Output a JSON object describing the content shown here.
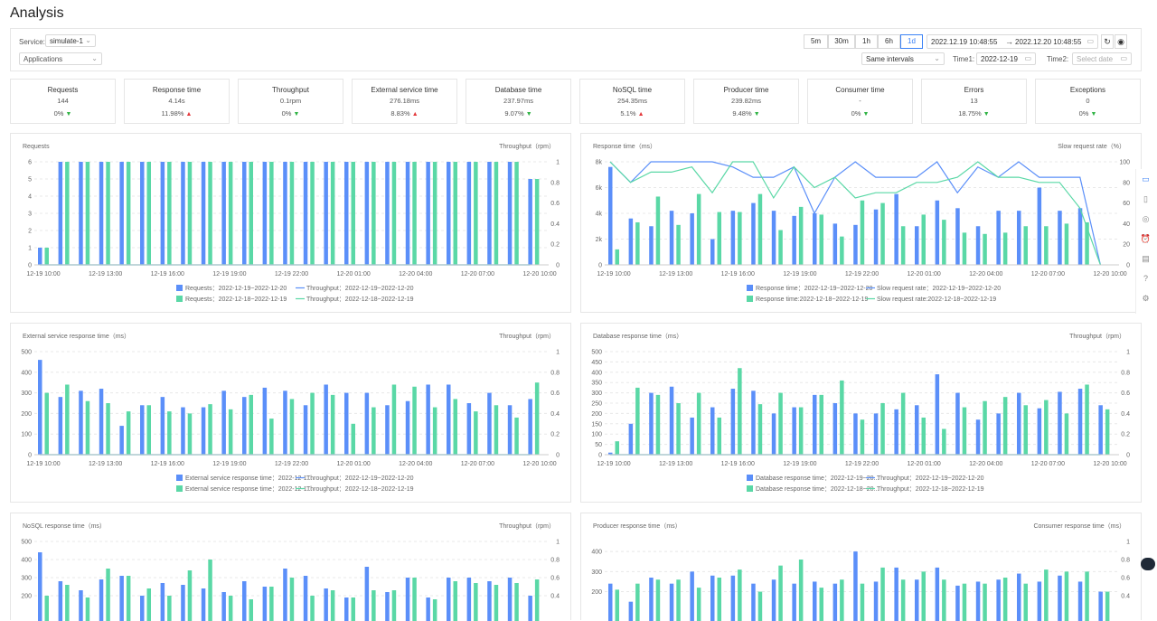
{
  "page_title": "Analysis",
  "toolbar": {
    "service_label": "Service:",
    "service_value": "simulate-1",
    "app_select": "Applications",
    "ranges": [
      "5m",
      "30m",
      "1h",
      "6h",
      "1d"
    ],
    "range_active": 4,
    "date_from": "2022.12.19 10:48:55",
    "arrow": "→",
    "date_to": "2022.12.20 10:48:55",
    "interval_select": "Same intervals",
    "time1_label": "Time1:",
    "time1_value": "2022-12-19",
    "time2_label": "Time2:",
    "time2_placeholder": "Select date"
  },
  "kpis": [
    {
      "title": "Requests",
      "value": "144",
      "delta": "0%",
      "dir": "down"
    },
    {
      "title": "Response time",
      "value": "4.14s",
      "delta": "11.98%",
      "dir": "up"
    },
    {
      "title": "Throughput",
      "value": "0.1rpm",
      "delta": "0%",
      "dir": "down"
    },
    {
      "title": "External service time",
      "value": "276.18ms",
      "delta": "8.83%",
      "dir": "up"
    },
    {
      "title": "Database time",
      "value": "237.97ms",
      "delta": "9.07%",
      "dir": "down"
    },
    {
      "title": "NoSQL time",
      "value": "254.35ms",
      "delta": "5.1%",
      "dir": "up"
    },
    {
      "title": "Producer time",
      "value": "239.82ms",
      "delta": "9.48%",
      "dir": "down"
    },
    {
      "title": "Consumer time",
      "value": "-",
      "delta": "0%",
      "dir": "down"
    },
    {
      "title": "Errors",
      "value": "13",
      "delta": "18.75%",
      "dir": "down"
    },
    {
      "title": "Exceptions",
      "value": "0",
      "delta": "0%",
      "dir": "down"
    }
  ],
  "colors": {
    "blue": "#5b8ff9",
    "green": "#5ad8a6",
    "up": "#e4393c",
    "down": "#2fb344"
  },
  "chart_data": [
    {
      "type": "bar",
      "title": "Requests",
      "ylabel_right": "Throughput（rpm）",
      "xticks": [
        "12-19 10:00",
        "12-19 13:00",
        "12-19 16:00",
        "12-19 19:00",
        "12-19 22:00",
        "12-20 01:00",
        "12-20 04:00",
        "12-20 07:00",
        "12-20 10:00"
      ],
      "yticks_left": [
        "0",
        "1",
        "2",
        "3",
        "4",
        "5",
        "6"
      ],
      "yticks_right": [
        "0",
        "0.2",
        "0.4",
        "0.6",
        "0.8",
        "1"
      ],
      "ylim": [
        0,
        6
      ],
      "y2lim": [
        0,
        1
      ],
      "series": [
        {
          "kind": "bar",
          "color": "#5b8ff9",
          "values": [
            1,
            6,
            6,
            6,
            6,
            6,
            6,
            6,
            6,
            6,
            6,
            6,
            6,
            6,
            6,
            6,
            6,
            6,
            6,
            6,
            6,
            6,
            6,
            6,
            5
          ]
        },
        {
          "kind": "bar",
          "color": "#5ad8a6",
          "values": [
            1,
            6,
            6,
            6,
            6,
            6,
            6,
            6,
            6,
            6,
            6,
            6,
            6,
            6,
            6,
            6,
            6,
            6,
            6,
            6,
            6,
            6,
            6,
            6,
            5
          ]
        },
        {
          "kind": "line",
          "color": "#5b8ff9",
          "axis": "right",
          "values": [
            0,
            0,
            0,
            0,
            0,
            0,
            0,
            0,
            0,
            0,
            0,
            0,
            0,
            0,
            0,
            0,
            0,
            0,
            0,
            0,
            0,
            0,
            0,
            0,
            0
          ]
        },
        {
          "kind": "line",
          "color": "#5ad8a6",
          "axis": "right",
          "values": [
            0,
            0,
            0,
            0,
            0,
            0,
            0,
            0,
            0,
            0,
            0,
            0,
            0,
            0,
            0,
            0,
            0,
            0,
            0,
            0,
            0,
            0,
            0,
            0,
            0
          ]
        }
      ],
      "legend": [
        [
          "Requests：2022-12-19~2022-12-20",
          "Throughput：2022-12-19~2022-12-20"
        ],
        [
          "Requests：2022-12-18~2022-12-19",
          "Throughput：2022-12-18~2022-12-19"
        ]
      ]
    },
    {
      "type": "bar",
      "title": "Response time（ms）",
      "ylabel_right": "Slow request rate（%）",
      "xticks": [
        "12-19 10:00",
        "12-19 13:00",
        "12-19 16:00",
        "12-19 19:00",
        "12-19 22:00",
        "12-20 01:00",
        "12-20 04:00",
        "12-20 07:00",
        "12-20 10:00"
      ],
      "yticks_left": [
        "0",
        "2k",
        "4k",
        "6k",
        "8k"
      ],
      "yticks_right": [
        "0",
        "20",
        "40",
        "60",
        "80",
        "100"
      ],
      "ylim": [
        0,
        8000
      ],
      "y2lim": [
        0,
        100
      ],
      "series": [
        {
          "kind": "bar",
          "color": "#5b8ff9",
          "values": [
            7600,
            3600,
            3000,
            4200,
            4000,
            2000,
            4200,
            4800,
            4200,
            3800,
            4000,
            3200,
            3100,
            4300,
            5500,
            3000,
            5000,
            4400,
            3000,
            4200,
            4200,
            6000,
            4200,
            4400,
            0
          ]
        },
        {
          "kind": "bar",
          "color": "#5ad8a6",
          "values": [
            1200,
            3300,
            5300,
            3100,
            5500,
            4100,
            4100,
            5500,
            2700,
            4500,
            3900,
            2200,
            5000,
            4800,
            3000,
            3900,
            3500,
            2500,
            2400,
            2500,
            3000,
            3000,
            3200,
            3300,
            0
          ]
        },
        {
          "kind": "line",
          "color": "#5b8ff9",
          "axis": "right",
          "values": [
            100,
            80,
            100,
            100,
            100,
            100,
            95,
            85,
            85,
            95,
            50,
            85,
            100,
            85,
            85,
            85,
            100,
            70,
            95,
            85,
            100,
            85,
            85,
            85,
            0
          ]
        },
        {
          "kind": "line",
          "color": "#5ad8a6",
          "axis": "right",
          "values": [
            100,
            80,
            90,
            90,
            95,
            70,
            100,
            100,
            65,
            95,
            75,
            85,
            65,
            70,
            70,
            80,
            80,
            85,
            100,
            85,
            85,
            80,
            80,
            55,
            0
          ]
        }
      ],
      "legend": [
        [
          "Response time：2022-12-19~2022-12-20",
          "Slow request rate：2022-12-19~2022-12-20"
        ],
        [
          "Response time:2022-12-18~2022-12-19",
          "Slow request rate:2022-12-18~2022-12-19"
        ]
      ]
    },
    {
      "type": "bar",
      "title": "External service response time（ms）",
      "ylabel_right": "Throughput（rpm）",
      "xticks": [
        "12-19 10:00",
        "12-19 13:00",
        "12-19 16:00",
        "12-19 19:00",
        "12-19 22:00",
        "12-20 01:00",
        "12-20 04:00",
        "12-20 07:00",
        "12-20 10:00"
      ],
      "yticks_left": [
        "0",
        "100",
        "200",
        "300",
        "400",
        "500"
      ],
      "yticks_right": [
        "0",
        "0.2",
        "0.4",
        "0.6",
        "0.8",
        "1"
      ],
      "ylim": [
        0,
        500
      ],
      "y2lim": [
        0,
        1
      ],
      "series": [
        {
          "kind": "bar",
          "color": "#5b8ff9",
          "values": [
            460,
            280,
            310,
            320,
            140,
            240,
            280,
            230,
            230,
            310,
            280,
            325,
            310,
            240,
            340,
            300,
            300,
            240,
            260,
            340,
            340,
            250,
            300,
            240,
            270
          ]
        },
        {
          "kind": "bar",
          "color": "#5ad8a6",
          "values": [
            300,
            340,
            260,
            250,
            210,
            240,
            210,
            200,
            245,
            220,
            290,
            175,
            270,
            300,
            290,
            150,
            230,
            340,
            330,
            230,
            270,
            210,
            240,
            180,
            350
          ]
        },
        {
          "kind": "line",
          "color": "#5b8ff9",
          "axis": "right",
          "values": [
            0,
            0,
            0,
            0,
            0,
            0,
            0,
            0,
            0,
            0,
            0,
            0,
            0,
            0,
            0,
            0,
            0,
            0,
            0,
            0,
            0,
            0,
            0,
            0,
            0
          ]
        },
        {
          "kind": "line",
          "color": "#5ad8a6",
          "axis": "right",
          "values": [
            0,
            0,
            0,
            0,
            0,
            0,
            0,
            0,
            0,
            0,
            0,
            0,
            0,
            0,
            0,
            0,
            0,
            0,
            0,
            0,
            0,
            0,
            0,
            0,
            0
          ]
        }
      ],
      "legend": [
        [
          "External service response time：2022-12-1...",
          "Throughput：2022-12-19~2022-12-20"
        ],
        [
          "External service response time：2022-12-1...",
          "Throughput：2022-12-18~2022-12-19"
        ]
      ]
    },
    {
      "type": "bar",
      "title": "Database response time（ms）",
      "ylabel_right": "Throughput（rpm）",
      "xticks": [
        "12-19 10:00",
        "12-19 13:00",
        "12-19 16:00",
        "12-19 19:00",
        "12-19 22:00",
        "12-20 01:00",
        "12-20 04:00",
        "12-20 07:00",
        "12-20 10:00"
      ],
      "yticks_left": [
        "0",
        "50",
        "100",
        "150",
        "200",
        "250",
        "300",
        "350",
        "400",
        "450",
        "500"
      ],
      "yticks_right": [
        "0",
        "0.2",
        "0.4",
        "0.6",
        "0.8",
        "1"
      ],
      "ylim": [
        0,
        500
      ],
      "y2lim": [
        0,
        1
      ],
      "series": [
        {
          "kind": "bar",
          "color": "#5b8ff9",
          "values": [
            10,
            150,
            300,
            330,
            180,
            230,
            320,
            310,
            200,
            230,
            290,
            250,
            200,
            200,
            220,
            240,
            390,
            300,
            170,
            200,
            300,
            225,
            305,
            320,
            240
          ]
        },
        {
          "kind": "bar",
          "color": "#5ad8a6",
          "values": [
            65,
            325,
            290,
            250,
            300,
            180,
            420,
            245,
            300,
            230,
            290,
            360,
            170,
            250,
            300,
            180,
            125,
            230,
            260,
            280,
            240,
            265,
            200,
            340,
            220
          ]
        },
        {
          "kind": "line",
          "color": "#5b8ff9",
          "axis": "right",
          "values": [
            0,
            0,
            0,
            0,
            0,
            0,
            0,
            0,
            0,
            0,
            0,
            0,
            0,
            0,
            0,
            0,
            0,
            0,
            0,
            0,
            0,
            0,
            0,
            0,
            0
          ]
        },
        {
          "kind": "line",
          "color": "#5ad8a6",
          "axis": "right",
          "values": [
            0,
            0,
            0,
            0,
            0,
            0,
            0,
            0,
            0,
            0,
            0,
            0,
            0,
            0,
            0,
            0,
            0,
            0,
            0,
            0,
            0,
            0,
            0,
            0,
            0
          ]
        }
      ],
      "legend": [
        [
          "Database response time：2022-12-19~20...",
          "Throughput：2022-12-19~2022-12-20"
        ],
        [
          "Database response time：2022-12-18~20...",
          "Throughput：2022-12-18~2022-12-19"
        ]
      ]
    },
    {
      "type": "bar",
      "title": "NoSQL response time（ms）",
      "ylabel_right": "Throughput（rpm）",
      "yticks_left": [
        "200",
        "300",
        "400",
        "500"
      ],
      "yticks_right": [
        "0.4",
        "0.6",
        "0.8",
        "1"
      ],
      "ylim": [
        0,
        500
      ],
      "y2lim": [
        0,
        1
      ],
      "series": [
        {
          "kind": "bar",
          "color": "#5b8ff9",
          "values": [
            440,
            280,
            230,
            290,
            310,
            200,
            270,
            260,
            240,
            220,
            280,
            250,
            350,
            310,
            240,
            190,
            360,
            220,
            300,
            190,
            300,
            300,
            280,
            300,
            200
          ]
        },
        {
          "kind": "bar",
          "color": "#5ad8a6",
          "values": [
            200,
            260,
            190,
            350,
            310,
            240,
            200,
            340,
            400,
            200,
            180,
            250,
            300,
            200,
            230,
            190,
            230,
            230,
            300,
            180,
            280,
            270,
            260,
            270,
            290
          ]
        }
      ]
    },
    {
      "type": "bar",
      "title": "Producer response time（ms）",
      "ylabel_right": "Consumer response time（ms）",
      "yticks_left": [
        "200",
        "300",
        "400"
      ],
      "yticks_right": [
        "0.4",
        "0.6",
        "0.8",
        "1"
      ],
      "ylim": [
        0,
        450
      ],
      "y2lim": [
        0,
        1
      ],
      "series": [
        {
          "kind": "bar",
          "color": "#5b8ff9",
          "values": [
            240,
            150,
            270,
            240,
            300,
            280,
            280,
            240,
            260,
            240,
            250,
            240,
            400,
            250,
            320,
            260,
            320,
            230,
            250,
            260,
            290,
            250,
            280,
            250,
            200
          ]
        },
        {
          "kind": "bar",
          "color": "#5ad8a6",
          "values": [
            210,
            240,
            260,
            260,
            220,
            270,
            310,
            200,
            330,
            360,
            220,
            260,
            240,
            320,
            260,
            300,
            260,
            240,
            240,
            270,
            240,
            310,
            300,
            300,
            200
          ]
        }
      ]
    }
  ]
}
